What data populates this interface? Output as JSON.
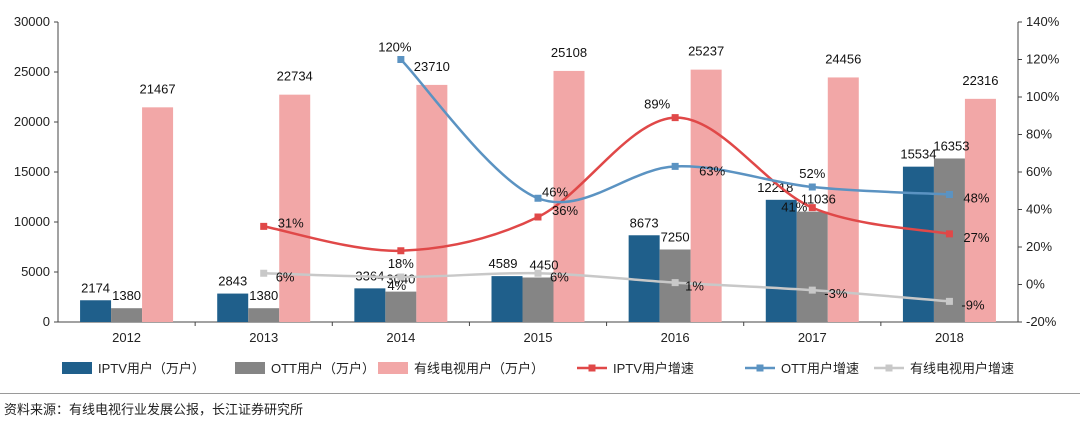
{
  "chart_data": {
    "type": "bar+line",
    "categories": [
      "2012",
      "2013",
      "2014",
      "2015",
      "2016",
      "2017",
      "2018"
    ],
    "left_axis": {
      "ticks": [
        "0",
        "5000",
        "10000",
        "15000",
        "20000",
        "25000",
        "30000"
      ],
      "ylim": [
        0,
        30000
      ]
    },
    "right_axis": {
      "ticks": [
        "-20%",
        "0%",
        "20%",
        "40%",
        "60%",
        "80%",
        "100%",
        "120%",
        "140%"
      ],
      "ylim": [
        -20,
        140
      ]
    },
    "grid": false,
    "legend_position": "bottom",
    "bar_series": [
      {
        "name": "IPTV用户（万户）",
        "color": "#1f5f8b",
        "values": [
          2174,
          2843,
          3364,
          4589,
          8673,
          12218,
          15534
        ],
        "labels": [
          "2174",
          "2843",
          "3364",
          "4589",
          "8673",
          "12218",
          "15534"
        ]
      },
      {
        "name": "OTT用户（万户）",
        "color": "#858585",
        "values": [
          1380,
          1380,
          3040,
          4450,
          7250,
          11036,
          16353
        ],
        "labels": [
          "1380",
          "1380",
          "3040",
          "4450",
          "7250",
          "11036",
          "16353"
        ]
      },
      {
        "name": "有线电视用户（万户）",
        "color": "#f2a7a7",
        "values": [
          21467,
          22734,
          23710,
          25108,
          25237,
          24456,
          22316
        ],
        "labels": [
          "21467",
          "22734",
          "23710",
          "25108",
          "25237",
          "24456",
          "22316"
        ]
      }
    ],
    "line_series": [
      {
        "name": "IPTV用户增速",
        "color": "#e04848",
        "values": [
          null,
          31,
          18,
          36,
          89,
          41,
          27
        ],
        "labels": [
          "",
          "31%",
          "18%",
          "36%",
          "89%",
          "41%",
          "27%"
        ]
      },
      {
        "name": "OTT用户增速",
        "color": "#5b93c2",
        "values": [
          null,
          null,
          120,
          46,
          63,
          52,
          48
        ],
        "labels": [
          "",
          "",
          "120%",
          "46%",
          "63%",
          "52%",
          "48%"
        ]
      },
      {
        "name": "有线电视用户增速",
        "color": "#c8c8c8",
        "values": [
          null,
          6,
          4,
          6,
          1,
          -3,
          -9
        ],
        "labels": [
          "",
          "6%",
          "4%",
          "6%",
          "1%",
          "-3%",
          "-9%"
        ]
      }
    ]
  },
  "footer": {
    "source": "资料来源：有线电视行业发展公报，长江证券研究所"
  }
}
